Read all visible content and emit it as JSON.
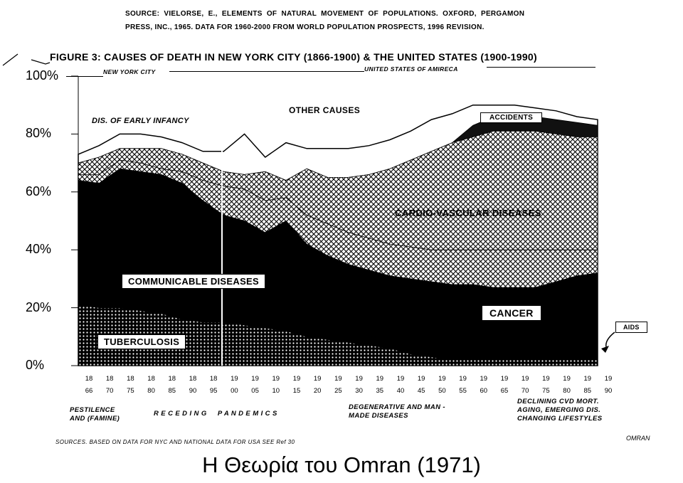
{
  "source_note": {
    "line1": "SOURCE:  VIELORSE,  E.,  ELEMENTS  OF  NATURAL  MOVEMENT  OF  POPULATIONS.  OXFORD,  PERGAMON",
    "line2": "PRESS, INC., 1965. DATA FOR 1960-2000 FROM WORLD POPULATION PROSPECTS, 1996 REVISION."
  },
  "chart_data": {
    "type": "area",
    "title": "FIGURE 3: CAUSES OF DEATH IN NEW YORK CITY (1866-1900) & THE UNITED STATES (1900-1990)",
    "region_labels": [
      "NEW YORK CITY",
      "UNITED STATES OF AMIRECA"
    ],
    "ylim": [
      0,
      100
    ],
    "y_ticks": [
      "0%",
      "20%",
      "40%",
      "60%",
      "80%",
      "100%"
    ],
    "x": [
      "1866",
      "1870",
      "1875",
      "1880",
      "1885",
      "1890",
      "1895",
      "1900",
      "1905",
      "1910",
      "1915",
      "1920",
      "1925",
      "1930",
      "1935",
      "1940",
      "1945",
      "1950",
      "1955",
      "1960",
      "1965",
      "1970",
      "1975",
      "1980",
      "1985",
      "1990"
    ],
    "x_tick_labels": [
      [
        "18",
        "66"
      ],
      [
        "18",
        "70"
      ],
      [
        "18",
        "75"
      ],
      [
        "18",
        "80"
      ],
      [
        "18",
        "85"
      ],
      [
        "18",
        "90"
      ],
      [
        "18",
        "95"
      ],
      [
        "19",
        "00"
      ],
      [
        "19",
        "05"
      ],
      [
        "19",
        "10"
      ],
      [
        "19",
        "15"
      ],
      [
        "19",
        "20"
      ],
      [
        "19",
        "25"
      ],
      [
        "19",
        "30"
      ],
      [
        "19",
        "35"
      ],
      [
        "19",
        "40"
      ],
      [
        "19",
        "45"
      ],
      [
        "19",
        "50"
      ],
      [
        "19",
        "55"
      ],
      [
        "19",
        "60"
      ],
      [
        "19",
        "65"
      ],
      [
        "19",
        "70"
      ],
      [
        "19",
        "75"
      ],
      [
        "19",
        "80"
      ],
      [
        "19",
        "85"
      ],
      [
        "19",
        "90"
      ]
    ],
    "stacked_cumulative_percent": {
      "tuberculosis": [
        21,
        20,
        20,
        19,
        18,
        16,
        15,
        15,
        14,
        13,
        12,
        10,
        9,
        8,
        7,
        6,
        4,
        3,
        2,
        2,
        2,
        2,
        2,
        2,
        2,
        2
      ],
      "aids": [
        21,
        20,
        20,
        19,
        18,
        16,
        15,
        15,
        14,
        13,
        12,
        10,
        9,
        8,
        7,
        6,
        4,
        3,
        2,
        2,
        2,
        2,
        2,
        2,
        3,
        3
      ],
      "communicable_diseases": [
        61,
        59,
        64,
        62,
        58,
        53,
        48,
        43,
        40,
        35,
        38,
        28,
        24,
        21,
        19,
        17,
        15,
        13,
        12,
        10,
        8,
        7,
        7,
        7,
        8,
        8
      ],
      "cancer": [
        64,
        63,
        68,
        67,
        66,
        63,
        57,
        52,
        50,
        46,
        50,
        42,
        38,
        35,
        33,
        31,
        30,
        29,
        28,
        28,
        27,
        27,
        27,
        29,
        31,
        32
      ],
      "dis_of_early_infancy": [
        66,
        66,
        71,
        70,
        68,
        67,
        64,
        62,
        61,
        57,
        58,
        52,
        49,
        46,
        44,
        42,
        41,
        40,
        40,
        40,
        40,
        40,
        40,
        40,
        40,
        40
      ],
      "cardio_vascular": [
        70,
        72,
        75,
        75,
        75,
        73,
        70,
        67,
        66,
        67,
        64,
        68,
        65,
        65,
        66,
        68,
        71,
        74,
        77,
        79,
        81,
        81,
        81,
        80,
        79,
        79
      ],
      "accidents": [
        70,
        72,
        75,
        75,
        75,
        73,
        70,
        67,
        66,
        67,
        64,
        68,
        65,
        65,
        66,
        68,
        71,
        74,
        77,
        83,
        86,
        86,
        86,
        85,
        84,
        83
      ],
      "other_causes": [
        73,
        76,
        80,
        80,
        79,
        77,
        74,
        74,
        80,
        72,
        77,
        75,
        75,
        75,
        76,
        78,
        81,
        85,
        87,
        90,
        90,
        90,
        89,
        88,
        86,
        85
      ]
    },
    "series_labels": {
      "tuberculosis": "TUBERCULOSIS",
      "communicable_diseases": "COMMUNICABLE DISEASES",
      "cancer": "CANCER",
      "dis_of_early_infancy": "DIS. OF EARLY INFANCY",
      "cardio_vascular": "CARDIO-VASCULAR DISEASES",
      "accidents": "ACCIDENTS",
      "other_causes": "OTHER CAUSES",
      "aids": "AIDS"
    },
    "fills": {
      "tuberculosis": "dots",
      "communicable_diseases": "#000000",
      "cancer": "#000000",
      "dis_of_early_infancy": "crosshatch",
      "cardio_vascular": "crosshatch",
      "accidents": "#111111",
      "other_causes": "#ffffff",
      "aids": "#000000"
    },
    "grid": false,
    "legend": "none"
  },
  "eras": {
    "pestilence": [
      "PESTILENCE",
      "AND  (FAMINE)"
    ],
    "receding": "R E C E D I N G     P A N D E M I C S",
    "degenerative": [
      "DEGENERATIVE AND MAN -",
      "MADE DISEASES"
    ],
    "declining": [
      "DECLINING CVD MORT.",
      "AGING, EMERGING DIS.",
      "CHANGING LIFESTYLES"
    ]
  },
  "sources_bottom": "SOURCES.  BASED ON DATA FOR NYC AND NATIONAL DATA FOR USA  SEE Ref  30",
  "omran_small": "OMRAN",
  "caption": "Η Θεωρία του Omran (1971)"
}
